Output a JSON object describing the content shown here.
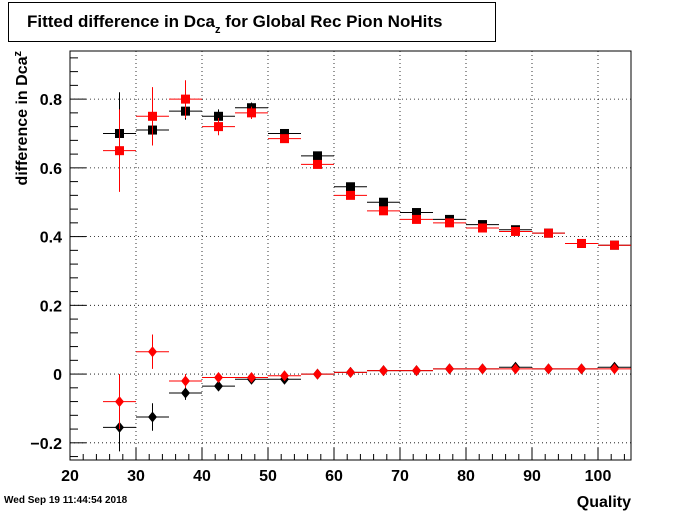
{
  "title": {
    "prefix": "Fitted difference in Dca",
    "sub": "z",
    "suffix": " for Global Rec Pion NoHits"
  },
  "timestamp": "Wed Sep 19 11:44:54 2018",
  "chart_data": {
    "type": "scatter",
    "xlabel": "Quality",
    "ylabel_prefix": "difference in Dca",
    "ylabel_sub": "z",
    "xlim": [
      20,
      105
    ],
    "ylim": [
      -0.25,
      0.94
    ],
    "x_ticks": [
      20,
      30,
      40,
      50,
      60,
      70,
      80,
      90,
      100
    ],
    "y_ticks": [
      -0.2,
      0,
      0.2,
      0.4,
      0.6,
      0.8
    ],
    "y_tick_labels": [
      "−0.2",
      "0",
      "0.2",
      "0.4",
      "0.6",
      "0.8"
    ],
    "grid": true,
    "x_bin_halfwidth": 2.5,
    "series": [
      {
        "marker": "square",
        "color": "#000000",
        "x": [
          27.5,
          32.5,
          37.5,
          42.5,
          47.5,
          52.5,
          57.5,
          62.5,
          67.5,
          72.5,
          77.5,
          82.5,
          87.5,
          92.5,
          97.5,
          102.5
        ],
        "y": [
          0.7,
          0.71,
          0.765,
          0.75,
          0.775,
          0.7,
          0.635,
          0.545,
          0.5,
          0.47,
          0.45,
          0.435,
          0.42,
          0.41,
          0.38,
          0.375
        ],
        "yerr": [
          0.12,
          0.04,
          0.025,
          0.02,
          0.015,
          0.01,
          0.01,
          0.008,
          0.006,
          0.005,
          0.005,
          0.004,
          0.004,
          0.004,
          0.004,
          0.004
        ]
      },
      {
        "marker": "square",
        "color": "#ff0000",
        "x": [
          27.5,
          32.5,
          37.5,
          42.5,
          47.5,
          52.5,
          57.5,
          62.5,
          67.5,
          72.5,
          77.5,
          82.5,
          87.5,
          92.5,
          97.5,
          102.5
        ],
        "y": [
          0.65,
          0.75,
          0.8,
          0.72,
          0.76,
          0.685,
          0.61,
          0.52,
          0.475,
          0.45,
          0.44,
          0.425,
          0.415,
          0.41,
          0.38,
          0.375
        ],
        "yerr": [
          0.12,
          0.085,
          0.055,
          0.025,
          0.018,
          0.012,
          0.01,
          0.008,
          0.006,
          0.005,
          0.005,
          0.004,
          0.004,
          0.004,
          0.004,
          0.004
        ]
      },
      {
        "marker": "diamond",
        "color": "#000000",
        "x": [
          27.5,
          32.5,
          37.5,
          42.5,
          47.5,
          52.5,
          57.5,
          62.5,
          67.5,
          72.5,
          77.5,
          82.5,
          87.5,
          92.5,
          97.5,
          102.5
        ],
        "y": [
          -0.155,
          -0.125,
          -0.055,
          -0.035,
          -0.015,
          -0.015,
          0.0,
          0.005,
          0.01,
          0.01,
          0.015,
          0.015,
          0.02,
          0.015,
          0.015,
          0.02
        ],
        "yerr": [
          0.07,
          0.04,
          0.02,
          0.01,
          0.008,
          0.006,
          0.005,
          0.004,
          0.004,
          0.003,
          0.003,
          0.003,
          0.003,
          0.003,
          0.003,
          0.003
        ]
      },
      {
        "marker": "diamond",
        "color": "#ff0000",
        "x": [
          27.5,
          32.5,
          37.5,
          42.5,
          47.5,
          52.5,
          57.5,
          62.5,
          67.5,
          72.5,
          77.5,
          82.5,
          87.5,
          92.5,
          97.5,
          102.5
        ],
        "y": [
          -0.08,
          0.065,
          -0.02,
          -0.01,
          -0.01,
          -0.005,
          0.0,
          0.005,
          0.01,
          0.01,
          0.015,
          0.015,
          0.015,
          0.015,
          0.015,
          0.015
        ],
        "yerr": [
          0.08,
          0.05,
          0.02,
          0.01,
          0.008,
          0.006,
          0.005,
          0.004,
          0.004,
          0.003,
          0.003,
          0.003,
          0.003,
          0.003,
          0.003,
          0.003
        ]
      }
    ]
  }
}
